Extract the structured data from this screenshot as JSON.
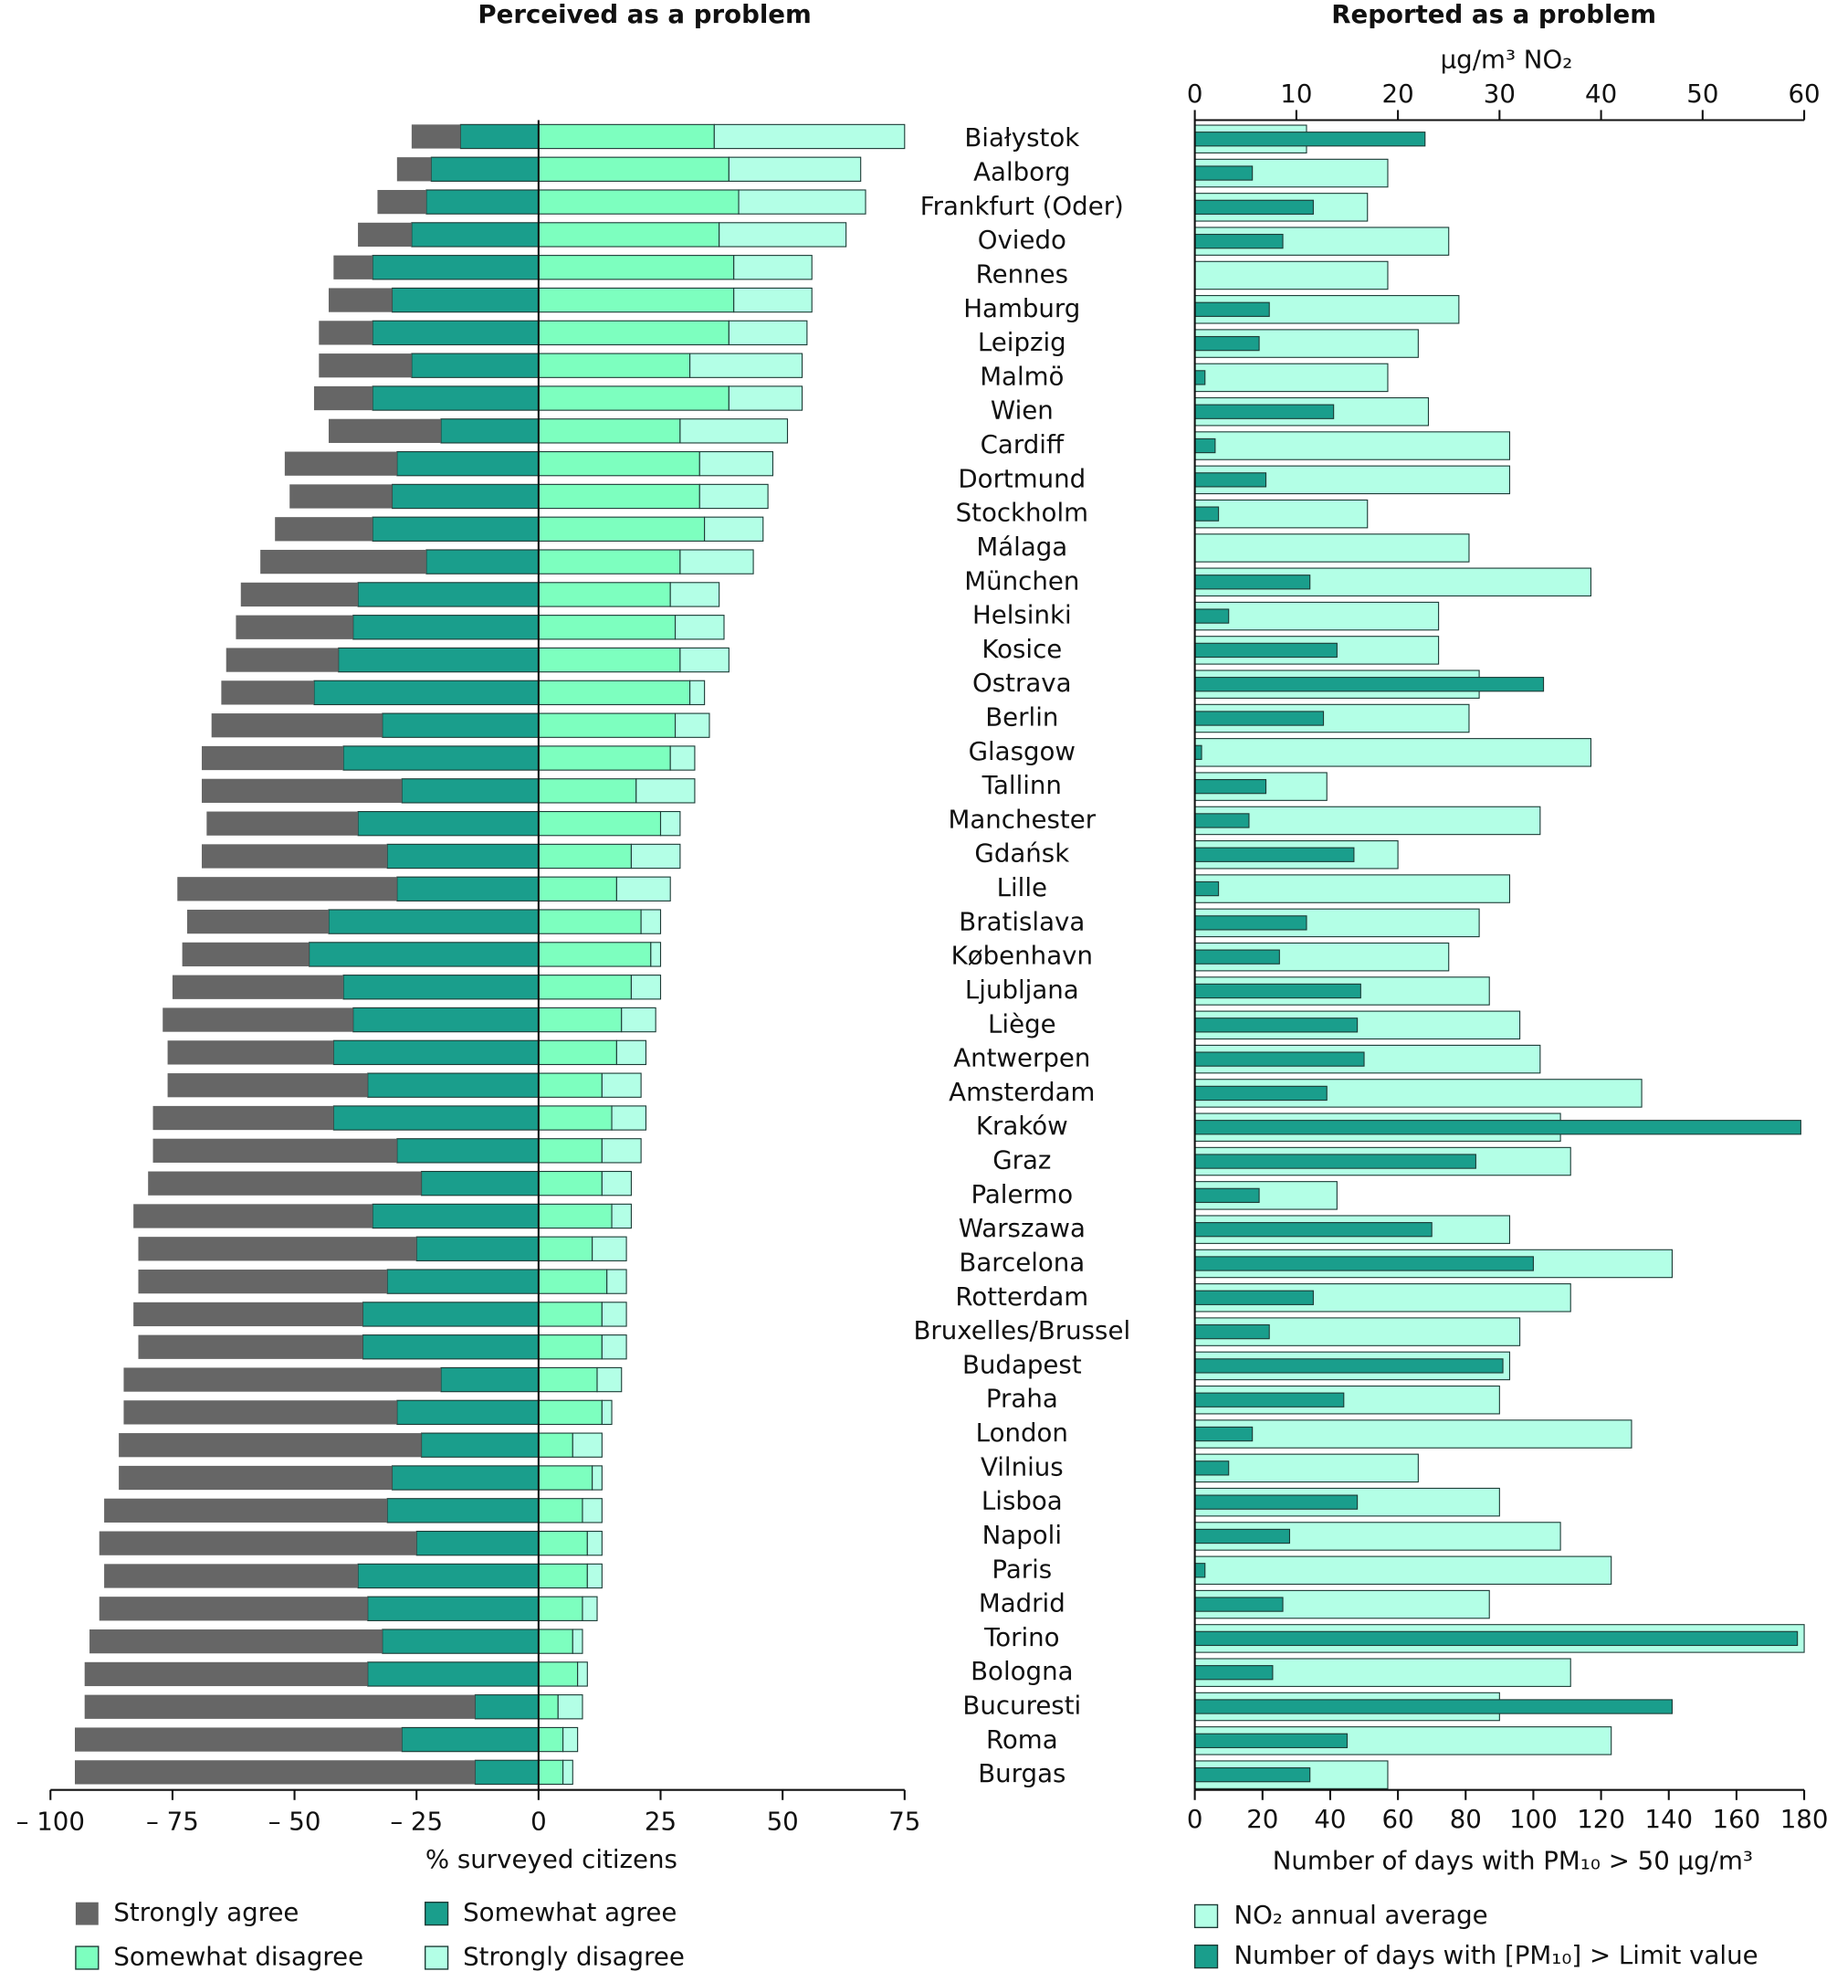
{
  "chart_data": [
    {
      "type": "diverging",
      "title": "Perceived as a problem",
      "xlabel": "% surveyed citizens",
      "xlim": [
        -100,
        75
      ],
      "xticks": [
        {
          "value": -100,
          "label": "– 100"
        },
        {
          "value": -75,
          "label": "– 75"
        },
        {
          "value": -50,
          "label": "– 50"
        },
        {
          "value": -25,
          "label": "– 25"
        },
        0,
        25,
        50,
        75
      ],
      "series": [
        {
          "name": "Strongly agree",
          "color": "#666666",
          "values": [
            -10,
            -7,
            -10,
            -11,
            -8,
            -13,
            -11,
            -19,
            -12,
            -23,
            -23,
            -21,
            -20,
            -34,
            -24,
            -24,
            -23,
            -19,
            -35,
            -29,
            -41,
            -31,
            -38,
            -45,
            -29,
            -26,
            -35,
            -39,
            -34,
            -41,
            -37,
            -50,
            -56,
            -49,
            -57,
            -51,
            -47,
            -46,
            -65,
            -56,
            -62,
            -56,
            -58,
            -65,
            -52,
            -55,
            -60,
            -58,
            -80,
            -67,
            -82
          ]
        },
        {
          "name": "Somewhat agree",
          "color": "#1a9e8c",
          "values": [
            -16,
            -22,
            -23,
            -26,
            -34,
            -30,
            -34,
            -26,
            -34,
            -20,
            -29,
            -30,
            -34,
            -23,
            -37,
            -38,
            -41,
            -46,
            -32,
            -40,
            -28,
            -37,
            -31,
            -29,
            -43,
            -47,
            -40,
            -38,
            -42,
            -35,
            -42,
            -29,
            -24,
            -34,
            -25,
            -31,
            -36,
            -36,
            -20,
            -29,
            -24,
            -30,
            -31,
            -25,
            -37,
            -35,
            -32,
            -35,
            -13,
            -28,
            -13
          ]
        },
        {
          "name": "Somewhat disagree",
          "color": "#7dffbf",
          "values": [
            36,
            39,
            41,
            37,
            40,
            40,
            39,
            31,
            39,
            29,
            33,
            33,
            34,
            29,
            27,
            28,
            29,
            31,
            28,
            27,
            20,
            25,
            19,
            16,
            21,
            23,
            19,
            17,
            16,
            13,
            15,
            13,
            13,
            15,
            11,
            14,
            13,
            13,
            12,
            13,
            7,
            11,
            9,
            10,
            10,
            9,
            7,
            8,
            4,
            5,
            5
          ]
        },
        {
          "name": "Strongly disagree",
          "color": "#b3ffe6",
          "values": [
            39,
            27,
            26,
            26,
            16,
            16,
            16,
            23,
            15,
            22,
            15,
            14,
            12,
            15,
            10,
            10,
            10,
            3,
            7,
            5,
            12,
            4,
            10,
            11,
            4,
            2,
            6,
            7,
            6,
            8,
            7,
            8,
            6,
            4,
            7,
            4,
            5,
            5,
            5,
            2,
            6,
            2,
            4,
            3,
            3,
            3,
            2,
            2,
            5,
            3,
            2
          ]
        }
      ]
    },
    {
      "type": "bar",
      "title": "Reported as a problem",
      "x2label": "µg/m³ NO₂",
      "xlabel": "Number of days with PM₁₀ > 50 µg/m³",
      "categories": [
        "Białystok",
        "Aalborg",
        "Frankfurt (Oder)",
        "Oviedo",
        "Rennes",
        "Hamburg",
        "Leipzig",
        "Malmö",
        "Wien",
        "Cardiff",
        "Dortmund",
        "Stockholm",
        "Málaga",
        "München",
        "Helsinki",
        "Kosice",
        "Ostrava",
        "Berlin",
        "Glasgow",
        "Tallinn",
        "Manchester",
        "Gdańsk",
        "Lille",
        "Bratislava",
        "København",
        "Ljubljana",
        "Liège",
        "Antwerpen",
        "Amsterdam",
        "Kraków",
        "Graz",
        "Palermo",
        "Warszawa",
        "Barcelona",
        "Rotterdam",
        "Bruxelles/Brussel",
        "Budapest",
        "Praha",
        "London",
        "Vilnius",
        "Lisboa",
        "Napoli",
        "Paris",
        "Madrid",
        "Torino",
        "Bologna",
        "Bucuresti",
        "Roma",
        "Burgas"
      ],
      "xlim": [
        0,
        180
      ],
      "xticks": [
        0,
        20,
        40,
        60,
        80,
        100,
        120,
        140,
        160,
        180
      ],
      "x2lim": [
        0,
        60
      ],
      "x2ticks": [
        0,
        10,
        20,
        30,
        40,
        50,
        60
      ],
      "series": [
        {
          "name": "NO₂ annual average",
          "color": "#b3ffe6",
          "axis": "x2",
          "values": [
            11,
            19,
            17,
            25,
            19,
            26,
            22,
            19,
            23,
            31,
            31,
            17,
            27,
            39,
            24,
            24,
            28,
            27,
            39,
            13,
            34,
            20,
            31,
            28,
            25,
            29,
            32,
            34,
            44,
            36,
            37,
            14,
            31,
            47,
            37,
            32,
            31,
            30,
            43,
            22,
            30,
            36,
            41,
            29,
            60,
            37,
            30,
            41,
            19
          ]
        },
        {
          "name": "Number of days with [PM₁₀] > Limit value",
          "color": "#1a9e8c",
          "values": [
            68,
            17,
            35,
            26,
            null,
            22,
            19,
            3,
            41,
            6,
            21,
            7,
            null,
            34,
            10,
            42,
            103,
            38,
            2,
            21,
            16,
            47,
            7,
            33,
            25,
            49,
            48,
            50,
            39,
            179,
            83,
            19,
            70,
            100,
            35,
            22,
            91,
            44,
            17,
            10,
            48,
            28,
            3,
            26,
            178,
            23,
            141,
            45,
            34
          ]
        }
      ]
    }
  ]
}
